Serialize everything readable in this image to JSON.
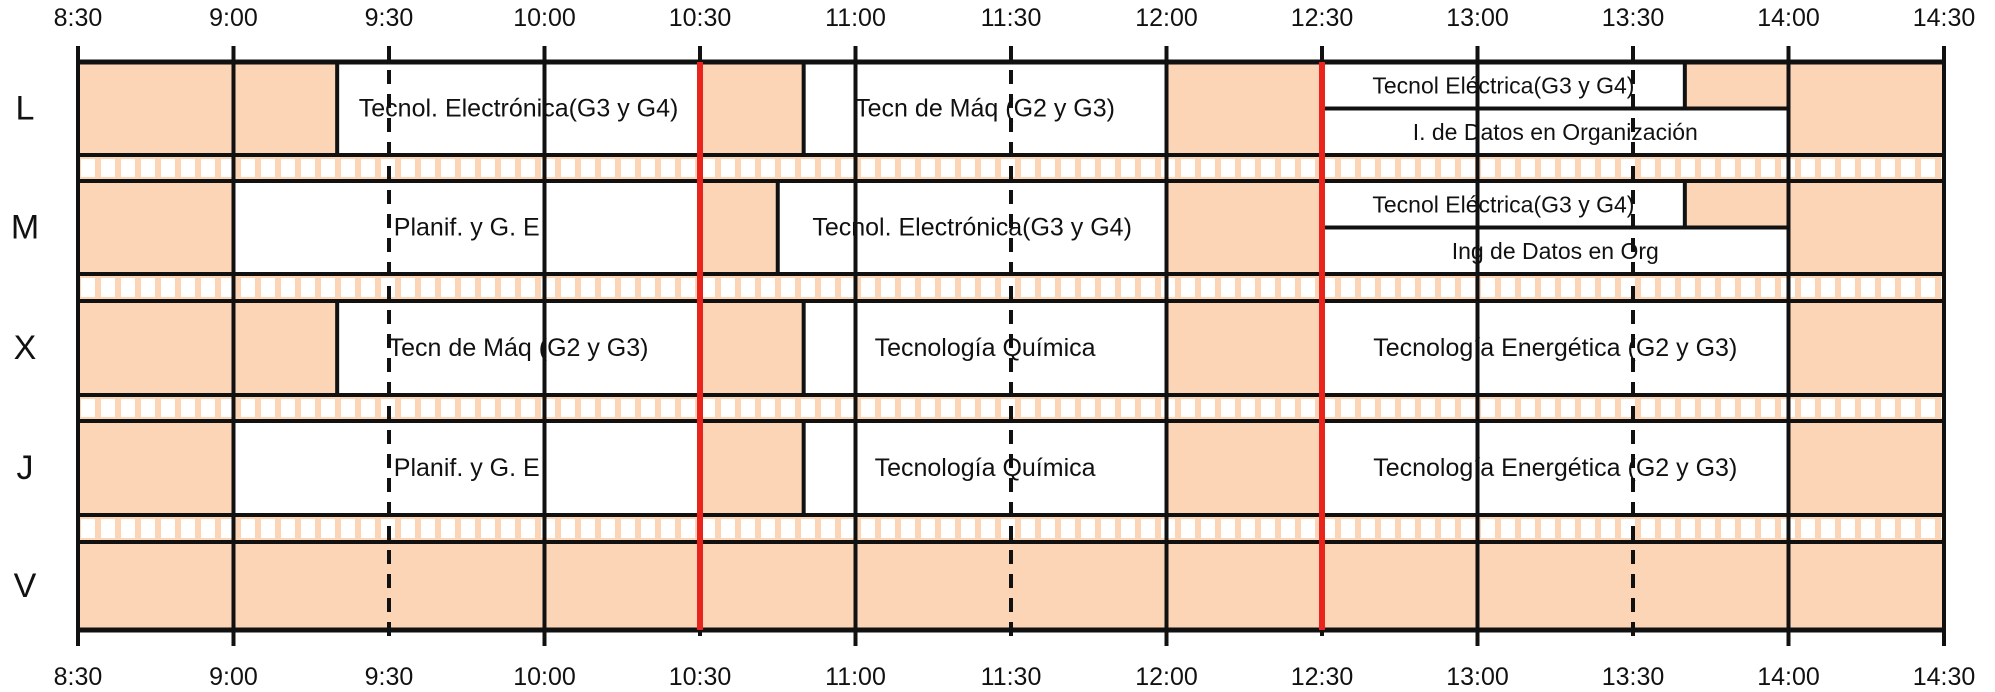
{
  "time_labels": [
    "8:30",
    "9:00",
    "9:30",
    "10:00",
    "10:30",
    "11:00",
    "11:30",
    "12:00",
    "12:30",
    "13:00",
    "13:30",
    "14:00",
    "14:30"
  ],
  "days": [
    "L",
    "M",
    "X",
    "J",
    "V"
  ],
  "colors": {
    "free": "#fbd5b5",
    "class": "#ffffff",
    "grid": "#111111",
    "marker": "#e8241c"
  },
  "markers": [
    "10:30",
    "12:30"
  ],
  "classes": [
    {
      "day": "L",
      "start": "9:20",
      "end": "10:30",
      "rows": "full",
      "label": "Tecnol. Electrónica(G3 y G4)"
    },
    {
      "day": "L",
      "start": "10:50",
      "end": "12:00",
      "rows": "full",
      "label": "Tecn de Máq (G2 y G3)"
    },
    {
      "day": "L",
      "start": "12:30",
      "end": "13:40",
      "rows": "top",
      "label": "Tecnol Eléctrica(G3 y G4)"
    },
    {
      "day": "L",
      "start": "12:30",
      "end": "14:00",
      "rows": "bottom",
      "label": "I. de Datos en Organización"
    },
    {
      "day": "M",
      "start": "9:00",
      "end": "10:30",
      "rows": "full",
      "label": "Planif. y G. E"
    },
    {
      "day": "M",
      "start": "10:45",
      "end": "12:00",
      "rows": "full",
      "label": "Tecnol. Electrónica(G3 y G4)"
    },
    {
      "day": "M",
      "start": "12:30",
      "end": "13:40",
      "rows": "top",
      "label": "Tecnol Eléctrica(G3 y G4)"
    },
    {
      "day": "M",
      "start": "12:30",
      "end": "14:00",
      "rows": "bottom",
      "label": "Ing de Datos en Org"
    },
    {
      "day": "X",
      "start": "9:20",
      "end": "10:30",
      "rows": "full",
      "label": "Tecn de Máq (G2 y G3)"
    },
    {
      "day": "X",
      "start": "10:50",
      "end": "12:00",
      "rows": "full",
      "label": "Tecnología Química"
    },
    {
      "day": "X",
      "start": "12:30",
      "end": "14:00",
      "rows": "full",
      "label": "Tecnología Energética (G2 y G3)"
    },
    {
      "day": "J",
      "start": "9:00",
      "end": "10:30",
      "rows": "full",
      "label": "Planif. y G. E"
    },
    {
      "day": "J",
      "start": "10:50",
      "end": "12:00",
      "rows": "full",
      "label": "Tecnología Química"
    },
    {
      "day": "J",
      "start": "12:30",
      "end": "14:00",
      "rows": "full",
      "label": "Tecnología Energética (G2 y G3)"
    }
  ]
}
